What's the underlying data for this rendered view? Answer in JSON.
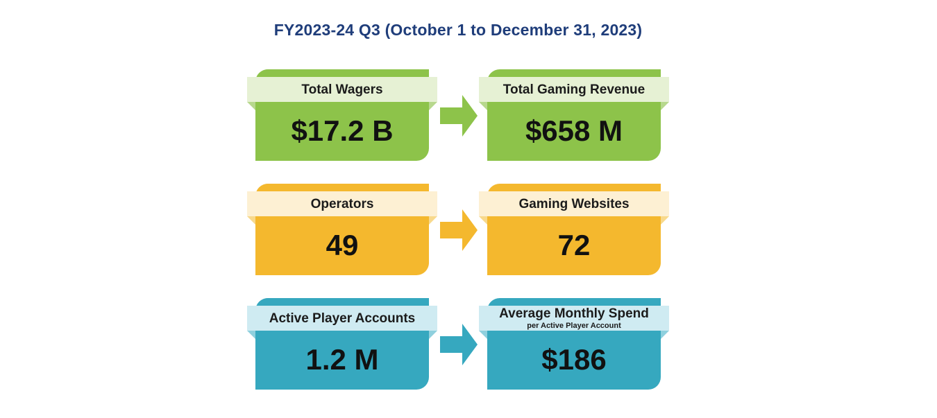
{
  "title": "FY2023-24 Q3 (October 1 to December 31, 2023)",
  "rows": [
    {
      "color": "#8dc34a",
      "left": {
        "label": "Total Wagers",
        "value": "$17.2 B"
      },
      "right": {
        "label": "Total Gaming Revenue",
        "value": "$658 M"
      }
    },
    {
      "color": "#f4b82e",
      "left": {
        "label": "Operators",
        "value": "49"
      },
      "right": {
        "label": "Gaming Websites",
        "value": "72"
      }
    },
    {
      "color": "#36a8bf",
      "left": {
        "label": "Active Player Accounts",
        "value": "1.2 M"
      },
      "right": {
        "label": "Average Monthly Spend",
        "sublabel": "per Active Player Account",
        "value": "$186"
      }
    }
  ]
}
